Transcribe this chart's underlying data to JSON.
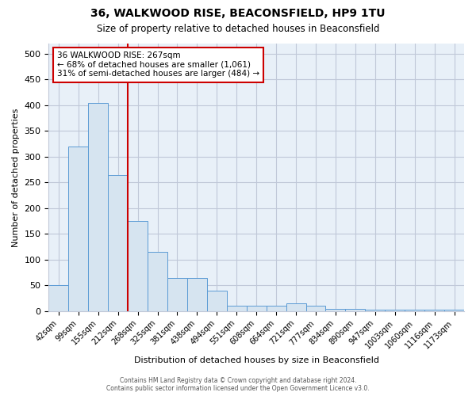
{
  "title": "36, WALKWOOD RISE, BEACONSFIELD, HP9 1TU",
  "subtitle": "Size of property relative to detached houses in Beaconsfield",
  "xlabel": "Distribution of detached houses by size in Beaconsfield",
  "ylabel": "Number of detached properties",
  "footer_line1": "Contains HM Land Registry data © Crown copyright and database right 2024.",
  "footer_line2": "Contains public sector information licensed under the Open Government Licence v3.0.",
  "bar_labels": [
    "42sqm",
    "99sqm",
    "155sqm",
    "212sqm",
    "268sqm",
    "325sqm",
    "381sqm",
    "438sqm",
    "494sqm",
    "551sqm",
    "608sqm",
    "664sqm",
    "721sqm",
    "777sqm",
    "834sqm",
    "890sqm",
    "947sqm",
    "1003sqm",
    "1060sqm",
    "1116sqm",
    "1173sqm"
  ],
  "bar_values": [
    50,
    320,
    405,
    265,
    175,
    115,
    65,
    65,
    40,
    10,
    10,
    10,
    15,
    10,
    5,
    5,
    3,
    3,
    3,
    3,
    3
  ],
  "bar_color": "#d6e4f0",
  "bar_edgecolor": "#5b9bd5",
  "annotation_line1": "36 WALKWOOD RISE: 267sqm",
  "annotation_line2": "← 68% of detached houses are smaller (1,061)",
  "annotation_line3": "31% of semi-detached houses are larger (484) →",
  "annotation_box_edgecolor": "#cc0000",
  "vline_x_index": 4,
  "vline_color": "#cc0000",
  "ylim": [
    0,
    520
  ],
  "yticks": [
    0,
    50,
    100,
    150,
    200,
    250,
    300,
    350,
    400,
    450,
    500
  ],
  "background_color": "#ffffff",
  "plot_bg_color": "#e8f0f8",
  "grid_color": "#c0c8d8"
}
